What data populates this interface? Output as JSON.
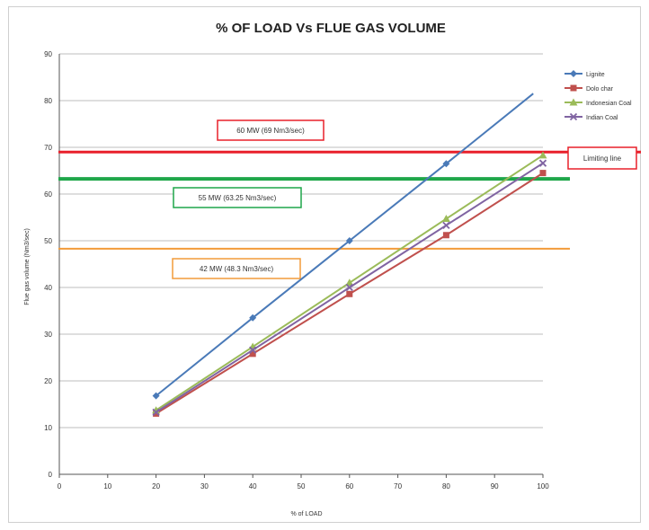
{
  "chart_data": {
    "type": "line",
    "title": "% OF LOAD Vs FLUE GAS VOLUME",
    "xlabel": "% of LOAD",
    "ylabel": "Flue gas volume (Nm3/sec)",
    "xlim": [
      0,
      100
    ],
    "ylim": [
      0,
      90
    ],
    "xticks": [
      0,
      10,
      20,
      30,
      40,
      50,
      60,
      70,
      80,
      90,
      100
    ],
    "yticks": [
      0,
      10,
      20,
      30,
      40,
      50,
      60,
      70,
      80,
      90
    ],
    "grid": true,
    "legend_position": "top-right",
    "series": [
      {
        "name": "Lignite",
        "color": "#4a7ab8",
        "marker": "diamond",
        "x": [
          20,
          40,
          60,
          80
        ],
        "y": [
          16.8,
          33.5,
          50,
          66.5
        ],
        "line_end": [
          98,
          81.5
        ]
      },
      {
        "name": "Dolo char",
        "color": "#c0504d",
        "marker": "square",
        "x": [
          20,
          40,
          60,
          80,
          100
        ],
        "y": [
          13,
          25.8,
          38.6,
          51.2,
          64.5
        ]
      },
      {
        "name": "Indonesian Coal",
        "color": "#9bbb59",
        "marker": "triangle",
        "x": [
          20,
          40,
          60,
          80,
          100
        ],
        "y": [
          13.7,
          27.3,
          41,
          54.7,
          68.3
        ]
      },
      {
        "name": "Indian Coal",
        "color": "#8064a2",
        "marker": "x",
        "x": [
          20,
          40,
          60,
          80,
          100
        ],
        "y": [
          13.3,
          26.6,
          40,
          53.3,
          66.6
        ]
      }
    ],
    "reference_lines": [
      {
        "label": "60 MW (69 Nm3/sec)",
        "y": 69,
        "color": "#e8202a"
      },
      {
        "label": "55 MW (63.25 Nm3/sec)",
        "y": 63.25,
        "color": "#1fa64a"
      },
      {
        "label": "42 MW (48.3 Nm3/sec)",
        "y": 48.3,
        "color": "#f29b3a"
      }
    ],
    "annotations": [
      {
        "text": "Limiting line",
        "color": "#e8202a"
      }
    ]
  }
}
